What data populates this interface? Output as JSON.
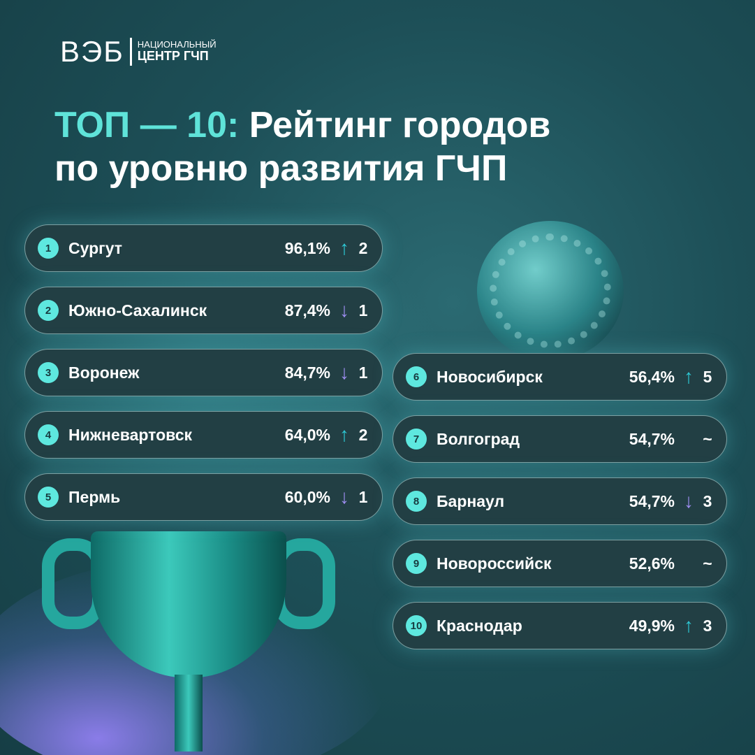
{
  "logo": {
    "mark": "ВЭБ",
    "line1": "НАЦИОНАЛЬНЫЙ",
    "line2": "ЦЕНТР ГЧП"
  },
  "title": {
    "accent": "ТОП — 10:",
    "line1": "Рейтинг городов",
    "line2": "по уровню развития ГЧП"
  },
  "colors": {
    "accent": "#5fe3d9",
    "up": "#2ec9d6",
    "down": "#9d8df0",
    "card": "#223f44"
  },
  "ranking": [
    {
      "rank": "1",
      "city": "Сургут",
      "percent": "96,1%",
      "trend": "up",
      "arrow": "↑",
      "change": "2"
    },
    {
      "rank": "2",
      "city": "Южно-Сахалинск",
      "percent": "87,4%",
      "trend": "down",
      "arrow": "↓",
      "change": "1"
    },
    {
      "rank": "3",
      "city": "Воронеж",
      "percent": "84,7%",
      "trend": "down",
      "arrow": "↓",
      "change": "1"
    },
    {
      "rank": "4",
      "city": "Нижневартовск",
      "percent": "64,0%",
      "trend": "up",
      "arrow": "↑",
      "change": "2"
    },
    {
      "rank": "5",
      "city": "Пермь",
      "percent": "60,0%",
      "trend": "down",
      "arrow": "↓",
      "change": "1"
    },
    {
      "rank": "6",
      "city": "Новосибирск",
      "percent": "56,4%",
      "trend": "up",
      "arrow": "↑",
      "change": "5"
    },
    {
      "rank": "7",
      "city": "Волгоград",
      "percent": "54,7%",
      "trend": "same",
      "arrow": "",
      "change": "~"
    },
    {
      "rank": "8",
      "city": "Барнаул",
      "percent": "54,7%",
      "trend": "down",
      "arrow": "↓",
      "change": "3"
    },
    {
      "rank": "9",
      "city": "Новороссийск",
      "percent": "52,6%",
      "trend": "same",
      "arrow": "",
      "change": "~"
    },
    {
      "rank": "10",
      "city": "Краснодар",
      "percent": "49,9%",
      "trend": "up",
      "arrow": "↑",
      "change": "3"
    }
  ]
}
